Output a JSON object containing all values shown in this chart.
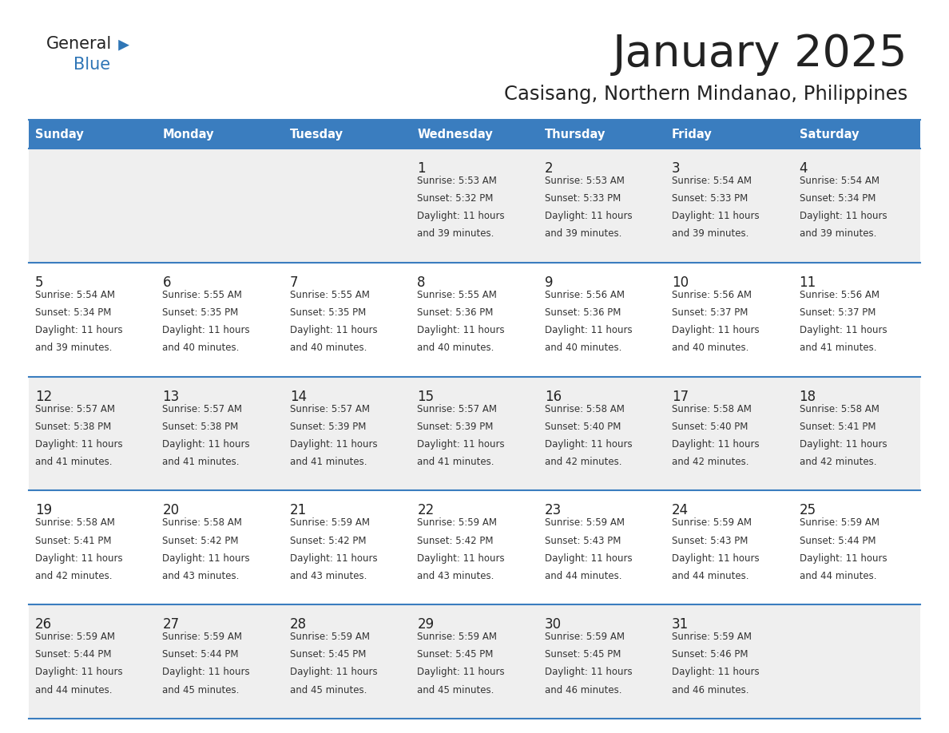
{
  "title": "January 2025",
  "subtitle": "Casisang, Northern Mindanao, Philippines",
  "days_of_week": [
    "Sunday",
    "Monday",
    "Tuesday",
    "Wednesday",
    "Thursday",
    "Friday",
    "Saturday"
  ],
  "header_bg": "#3a7dbf",
  "header_text": "#ffffff",
  "row_bg_odd": "#efefef",
  "row_bg_even": "#ffffff",
  "cell_text_color": "#333333",
  "day_num_color": "#222222",
  "border_color": "#3a7dbf",
  "logo_general_color": "#222222",
  "logo_blue_color": "#2e75b6",
  "logo_triangle_color": "#2e75b6",
  "calendar_data": [
    [
      null,
      null,
      null,
      {
        "day": 1,
        "sunrise": "5:53 AM",
        "sunset": "5:32 PM",
        "daylight": "11 hours and 39 minutes."
      },
      {
        "day": 2,
        "sunrise": "5:53 AM",
        "sunset": "5:33 PM",
        "daylight": "11 hours and 39 minutes."
      },
      {
        "day": 3,
        "sunrise": "5:54 AM",
        "sunset": "5:33 PM",
        "daylight": "11 hours and 39 minutes."
      },
      {
        "day": 4,
        "sunrise": "5:54 AM",
        "sunset": "5:34 PM",
        "daylight": "11 hours and 39 minutes."
      }
    ],
    [
      {
        "day": 5,
        "sunrise": "5:54 AM",
        "sunset": "5:34 PM",
        "daylight": "11 hours and 39 minutes."
      },
      {
        "day": 6,
        "sunrise": "5:55 AM",
        "sunset": "5:35 PM",
        "daylight": "11 hours and 40 minutes."
      },
      {
        "day": 7,
        "sunrise": "5:55 AM",
        "sunset": "5:35 PM",
        "daylight": "11 hours and 40 minutes."
      },
      {
        "day": 8,
        "sunrise": "5:55 AM",
        "sunset": "5:36 PM",
        "daylight": "11 hours and 40 minutes."
      },
      {
        "day": 9,
        "sunrise": "5:56 AM",
        "sunset": "5:36 PM",
        "daylight": "11 hours and 40 minutes."
      },
      {
        "day": 10,
        "sunrise": "5:56 AM",
        "sunset": "5:37 PM",
        "daylight": "11 hours and 40 minutes."
      },
      {
        "day": 11,
        "sunrise": "5:56 AM",
        "sunset": "5:37 PM",
        "daylight": "11 hours and 41 minutes."
      }
    ],
    [
      {
        "day": 12,
        "sunrise": "5:57 AM",
        "sunset": "5:38 PM",
        "daylight": "11 hours and 41 minutes."
      },
      {
        "day": 13,
        "sunrise": "5:57 AM",
        "sunset": "5:38 PM",
        "daylight": "11 hours and 41 minutes."
      },
      {
        "day": 14,
        "sunrise": "5:57 AM",
        "sunset": "5:39 PM",
        "daylight": "11 hours and 41 minutes."
      },
      {
        "day": 15,
        "sunrise": "5:57 AM",
        "sunset": "5:39 PM",
        "daylight": "11 hours and 41 minutes."
      },
      {
        "day": 16,
        "sunrise": "5:58 AM",
        "sunset": "5:40 PM",
        "daylight": "11 hours and 42 minutes."
      },
      {
        "day": 17,
        "sunrise": "5:58 AM",
        "sunset": "5:40 PM",
        "daylight": "11 hours and 42 minutes."
      },
      {
        "day": 18,
        "sunrise": "5:58 AM",
        "sunset": "5:41 PM",
        "daylight": "11 hours and 42 minutes."
      }
    ],
    [
      {
        "day": 19,
        "sunrise": "5:58 AM",
        "sunset": "5:41 PM",
        "daylight": "11 hours and 42 minutes."
      },
      {
        "day": 20,
        "sunrise": "5:58 AM",
        "sunset": "5:42 PM",
        "daylight": "11 hours and 43 minutes."
      },
      {
        "day": 21,
        "sunrise": "5:59 AM",
        "sunset": "5:42 PM",
        "daylight": "11 hours and 43 minutes."
      },
      {
        "day": 22,
        "sunrise": "5:59 AM",
        "sunset": "5:42 PM",
        "daylight": "11 hours and 43 minutes."
      },
      {
        "day": 23,
        "sunrise": "5:59 AM",
        "sunset": "5:43 PM",
        "daylight": "11 hours and 44 minutes."
      },
      {
        "day": 24,
        "sunrise": "5:59 AM",
        "sunset": "5:43 PM",
        "daylight": "11 hours and 44 minutes."
      },
      {
        "day": 25,
        "sunrise": "5:59 AM",
        "sunset": "5:44 PM",
        "daylight": "11 hours and 44 minutes."
      }
    ],
    [
      {
        "day": 26,
        "sunrise": "5:59 AM",
        "sunset": "5:44 PM",
        "daylight": "11 hours and 44 minutes."
      },
      {
        "day": 27,
        "sunrise": "5:59 AM",
        "sunset": "5:44 PM",
        "daylight": "11 hours and 45 minutes."
      },
      {
        "day": 28,
        "sunrise": "5:59 AM",
        "sunset": "5:45 PM",
        "daylight": "11 hours and 45 minutes."
      },
      {
        "day": 29,
        "sunrise": "5:59 AM",
        "sunset": "5:45 PM",
        "daylight": "11 hours and 45 minutes."
      },
      {
        "day": 30,
        "sunrise": "5:59 AM",
        "sunset": "5:45 PM",
        "daylight": "11 hours and 46 minutes."
      },
      {
        "day": 31,
        "sunrise": "5:59 AM",
        "sunset": "5:46 PM",
        "daylight": "11 hours and 46 minutes."
      },
      null
    ]
  ]
}
